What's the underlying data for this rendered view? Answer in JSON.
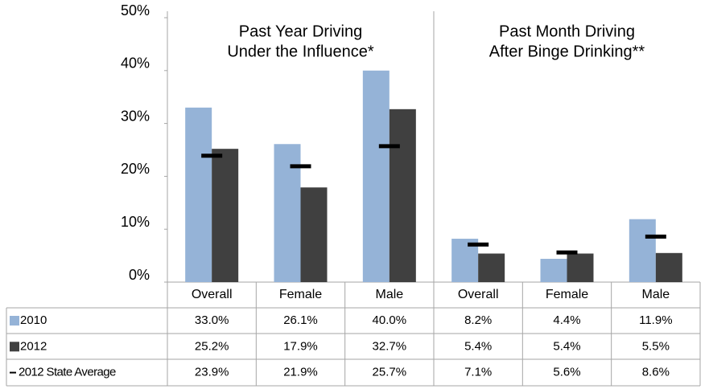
{
  "chart_data": {
    "type": "bar",
    "groups": [
      {
        "title_lines": [
          "Past Year Driving",
          "Under the Influence*"
        ]
      },
      {
        "title_lines": [
          "Past Month Driving",
          "After Binge Drinking**"
        ]
      }
    ],
    "categories": [
      "Overall",
      "Female",
      "Male",
      "Overall",
      "Female",
      "Male"
    ],
    "series": [
      {
        "name": "2010",
        "color": "#95b3d7",
        "mark": "bar",
        "values": [
          33.0,
          26.1,
          40.0,
          8.2,
          4.4,
          11.9
        ],
        "value_labels": [
          "33.0%",
          "26.1%",
          "40.0%",
          "8.2%",
          "4.4%",
          "11.9%"
        ]
      },
      {
        "name": "2012",
        "color": "#404040",
        "mark": "bar",
        "values": [
          25.2,
          17.9,
          32.7,
          5.4,
          5.4,
          5.5
        ],
        "value_labels": [
          "25.2%",
          "17.9%",
          "32.7%",
          "5.4%",
          "5.4%",
          "5.5%"
        ]
      },
      {
        "name": "2012 State Average",
        "color": "#000000",
        "mark": "dash",
        "values": [
          23.9,
          21.9,
          25.7,
          7.1,
          5.6,
          8.6
        ],
        "value_labels": [
          "23.9%",
          "21.9%",
          "25.7%",
          "7.1%",
          "5.6%",
          "8.6%"
        ]
      }
    ],
    "ylim": [
      0,
      50
    ],
    "yticks": [
      {
        "value": 0,
        "label": "0%"
      },
      {
        "value": 10,
        "label": "10%"
      },
      {
        "value": 20,
        "label": "20%"
      },
      {
        "value": 30,
        "label": "30%"
      },
      {
        "value": 40,
        "label": "40%"
      },
      {
        "value": 50,
        "label": "50%"
      }
    ]
  }
}
